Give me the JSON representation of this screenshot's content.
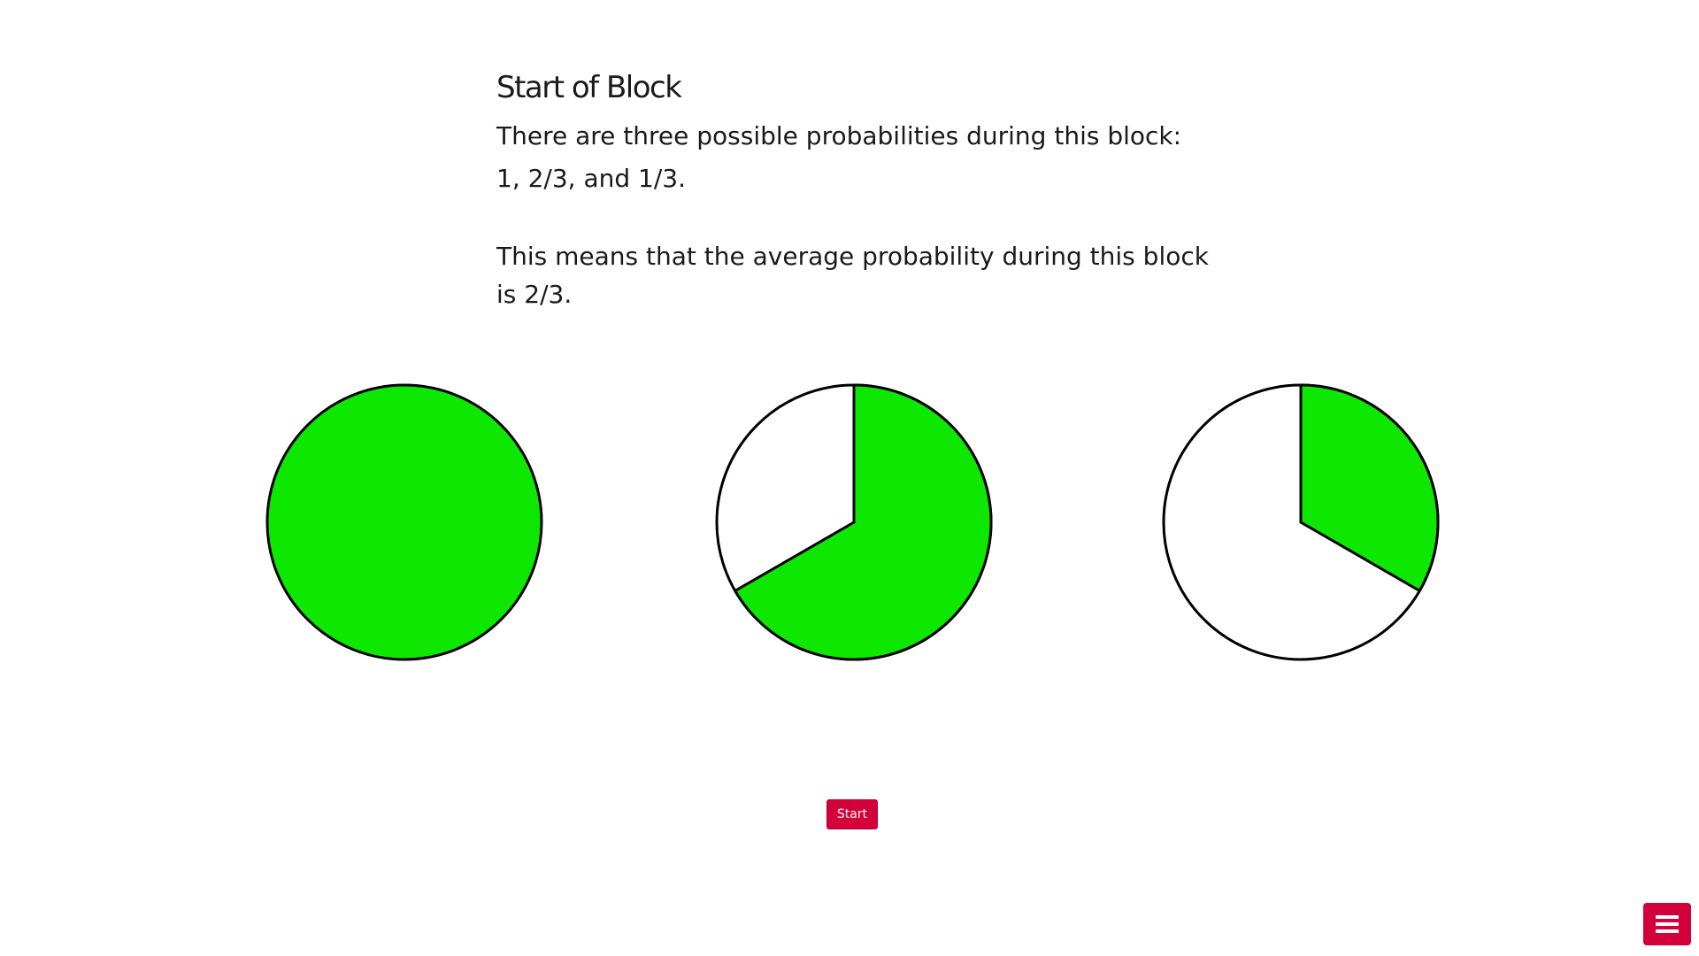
{
  "page": {
    "heading": "Start of Block",
    "line1": "There are three possible probabilities during this block:",
    "line2": "1, 2/3, and 1/3.",
    "line3": "This means that the average probability during this block is 2/3."
  },
  "pies": [
    {
      "fraction": 1.0
    },
    {
      "fraction": 0.6667
    },
    {
      "fraction": 0.3333
    }
  ],
  "colors": {
    "fill": "#0ee800",
    "empty": "#ffffff",
    "stroke": "#000000",
    "accent": "#d4003a"
  },
  "buttons": {
    "start_label": "Start"
  },
  "icons": {
    "menu": "hamburger-menu-icon"
  }
}
